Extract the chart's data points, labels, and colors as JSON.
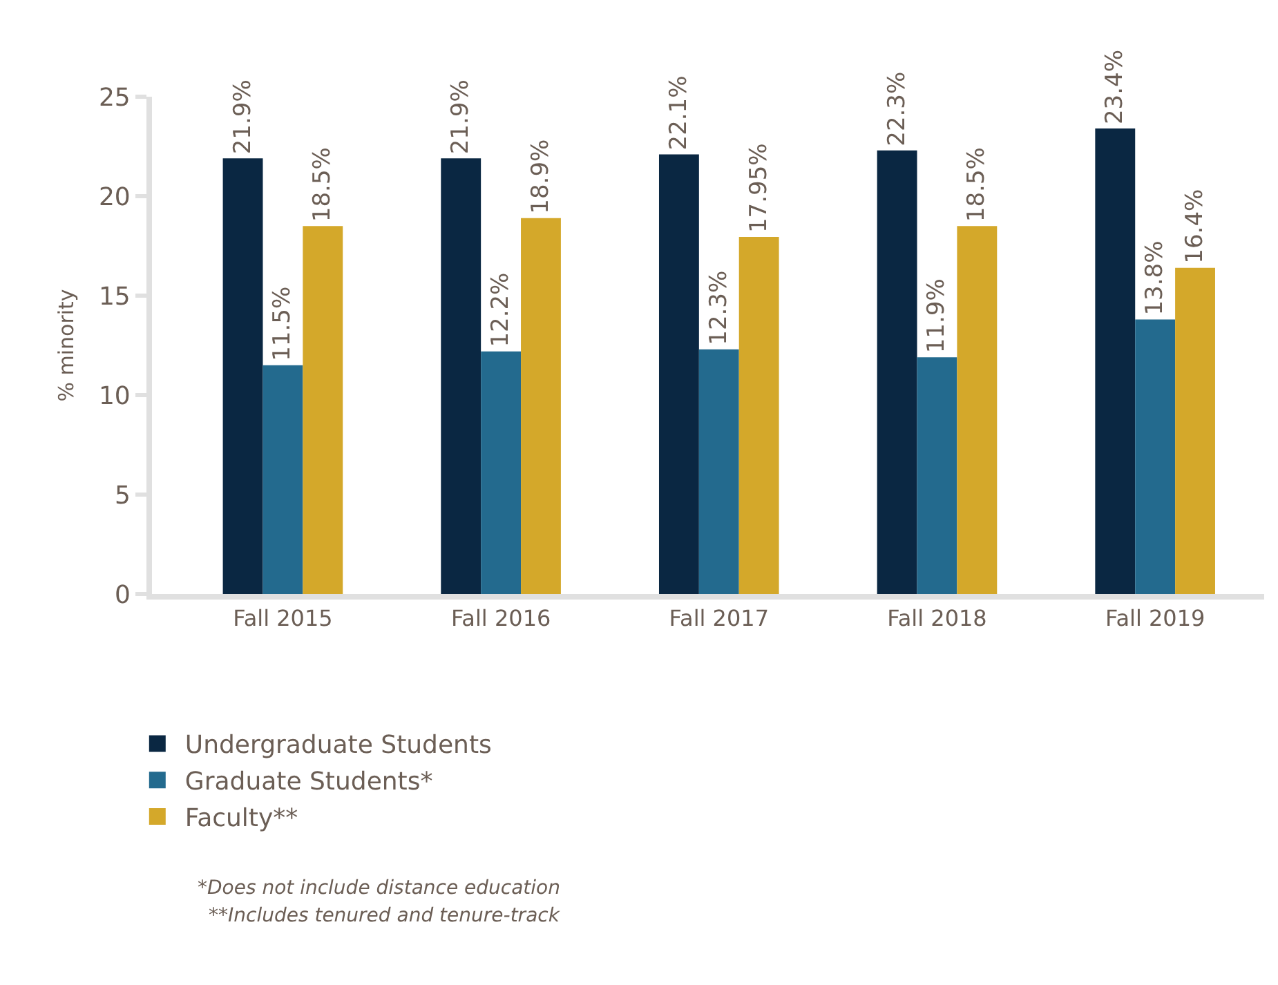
{
  "chart_data": {
    "type": "bar",
    "ylabel": "% minority",
    "categories": [
      "Fall 2015",
      "Fall 2016",
      "Fall 2017",
      "Fall 2018",
      "Fall 2019"
    ],
    "series": [
      {
        "name": "Undergraduate Students",
        "color": "#0a2742",
        "values": [
          21.9,
          21.9,
          22.1,
          22.3,
          23.4
        ],
        "value_labels": [
          "21.9%",
          "21.9%",
          "22.1%",
          "22.3%",
          "23.4%"
        ]
      },
      {
        "name": "Graduate Students*",
        "color": "#236a8e",
        "values": [
          11.5,
          12.2,
          12.3,
          11.9,
          13.8
        ],
        "value_labels": [
          "11.5%",
          "12.2%",
          "12.3%",
          "11.9%",
          "13.8%"
        ]
      },
      {
        "name": "Faculty**",
        "color": "#d4a82a",
        "values": [
          18.5,
          18.9,
          17.95,
          18.5,
          16.4
        ],
        "value_labels": [
          "18.5%",
          "18.9%",
          "17.95%",
          "18.5%",
          "16.4%"
        ]
      }
    ],
    "ylim": [
      0,
      25
    ],
    "yticks": [
      0,
      5,
      10,
      15,
      20,
      25
    ],
    "legend": "bottom left",
    "annotations": [
      "*Does not include distance education",
      "**Includes tenured and tenure-track"
    ]
  }
}
